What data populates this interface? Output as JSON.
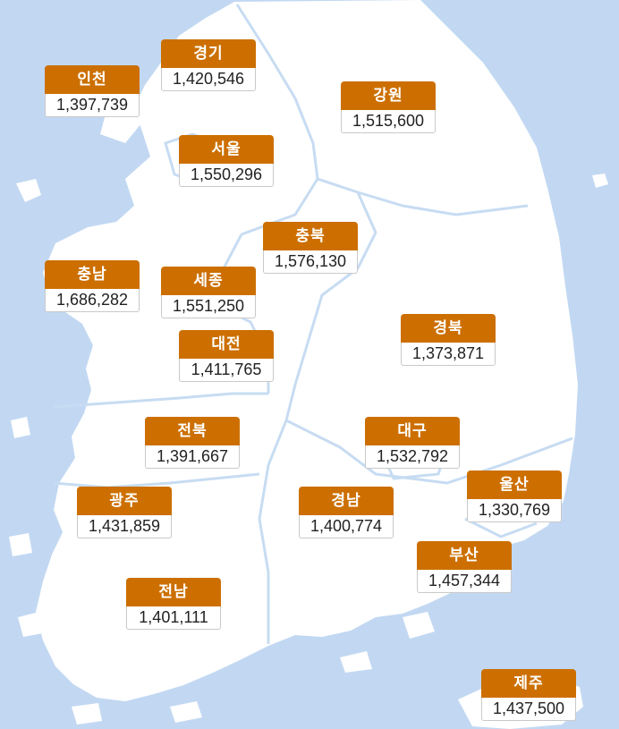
{
  "regions": [
    {
      "id": "incheon",
      "name": "인천",
      "value": "1,397,739"
    },
    {
      "id": "gyeonggi",
      "name": "경기",
      "value": "1,420,546"
    },
    {
      "id": "gangwon",
      "name": "강원",
      "value": "1,515,600"
    },
    {
      "id": "seoul",
      "name": "서울",
      "value": "1,550,296"
    },
    {
      "id": "chungbuk",
      "name": "충북",
      "value": "1,576,130"
    },
    {
      "id": "chungnam",
      "name": "충남",
      "value": "1,686,282"
    },
    {
      "id": "sejong",
      "name": "세종",
      "value": "1,551,250"
    },
    {
      "id": "daejeon",
      "name": "대전",
      "value": "1,411,765"
    },
    {
      "id": "gyeongbuk",
      "name": "경북",
      "value": "1,373,871"
    },
    {
      "id": "jeonbuk",
      "name": "전북",
      "value": "1,391,667"
    },
    {
      "id": "daegu",
      "name": "대구",
      "value": "1,532,792"
    },
    {
      "id": "ulsan",
      "name": "울산",
      "value": "1,330,769"
    },
    {
      "id": "gwangju",
      "name": "광주",
      "value": "1,431,859"
    },
    {
      "id": "gyeongnam",
      "name": "경남",
      "value": "1,400,774"
    },
    {
      "id": "busan",
      "name": "부산",
      "value": "1,457,344"
    },
    {
      "id": "jeonnam",
      "name": "전남",
      "value": "1,401,111"
    },
    {
      "id": "jeju",
      "name": "제주",
      "value": "1,437,500"
    }
  ],
  "colors": {
    "sea": "#c2d8f2",
    "land": "#ffffff",
    "label_header": "#cc6f00",
    "border": "#c7dcf2"
  }
}
